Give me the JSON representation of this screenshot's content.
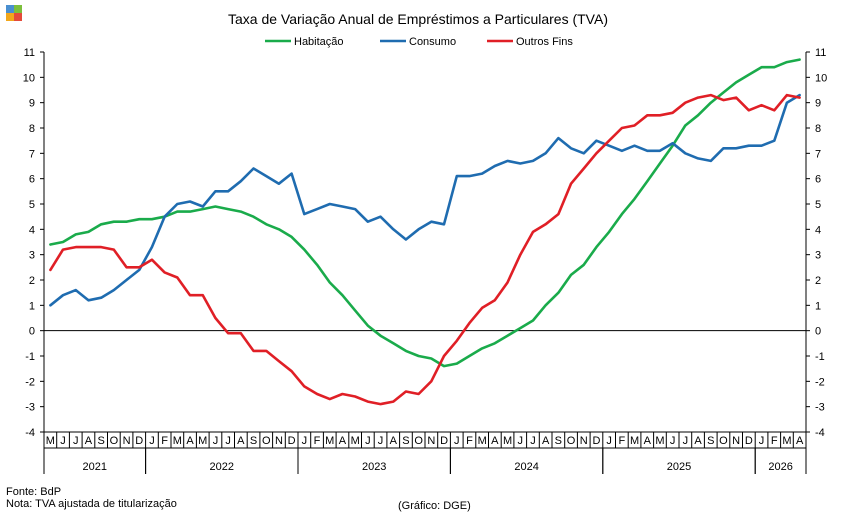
{
  "chart_data": {
    "type": "line",
    "title": "Taxa de Variação Anual de Empréstimos  a Particulares (TVA)",
    "ylim": [
      -4,
      11
    ],
    "yticks": [
      11,
      10,
      9,
      8,
      7,
      6,
      5,
      4,
      3,
      2,
      1,
      0,
      -1,
      -2,
      -3,
      -4
    ],
    "grid": false,
    "legend": "top-center",
    "months": [
      "M",
      "J",
      "J",
      "A",
      "S",
      "O",
      "N",
      "D",
      "J",
      "F",
      "M",
      "A",
      "M",
      "J",
      "J",
      "A",
      "S",
      "O",
      "N",
      "D",
      "J",
      "F",
      "M",
      "A",
      "M",
      "J",
      "J",
      "A",
      "S",
      "O",
      "N",
      "D",
      "J",
      "F",
      "M",
      "A",
      "M",
      "J",
      "J",
      "A",
      "S",
      "O",
      "N",
      "D",
      "J",
      "F",
      "M",
      "A",
      "M",
      "J",
      "J",
      "A",
      "S",
      "O",
      "N",
      "D",
      "J",
      "F",
      "M",
      "A"
    ],
    "years": [
      {
        "label": "2021",
        "start": 0,
        "count": 8
      },
      {
        "label": "2022",
        "start": 8,
        "count": 12
      },
      {
        "label": "2023",
        "start": 20,
        "count": 12
      },
      {
        "label": "2024",
        "start": 32,
        "count": 12
      },
      {
        "label": "2025",
        "start": 44,
        "count": 12
      },
      {
        "label": "2026",
        "start": 56,
        "count": 4
      }
    ],
    "series": [
      {
        "name": "Habitação",
        "color": "#1aab4b",
        "values": [
          3.4,
          3.5,
          3.8,
          3.9,
          4.2,
          4.3,
          4.3,
          4.4,
          4.4,
          4.5,
          4.7,
          4.7,
          4.8,
          4.9,
          4.8,
          4.7,
          4.5,
          4.2,
          4.0,
          3.7,
          3.2,
          2.6,
          1.9,
          1.4,
          0.8,
          0.2,
          -0.2,
          -0.5,
          -0.8,
          -1.0,
          -1.1,
          -1.4,
          -1.3,
          -1.0,
          -0.7,
          -0.5,
          -0.2,
          0.1,
          0.4,
          1.0,
          1.5,
          2.2,
          2.6,
          3.3,
          3.9,
          4.6,
          5.2,
          5.9,
          6.6,
          7.3,
          8.1,
          8.5,
          9.0,
          9.4,
          9.8,
          10.1,
          10.4,
          10.4,
          10.6,
          10.7
        ]
      },
      {
        "name": "Consumo",
        "color": "#1f6cb0",
        "values": [
          1.0,
          1.4,
          1.6,
          1.2,
          1.3,
          1.6,
          2.0,
          2.4,
          3.3,
          4.5,
          5.0,
          5.1,
          4.9,
          5.5,
          5.5,
          5.9,
          6.4,
          6.1,
          5.8,
          6.2,
          4.6,
          4.8,
          5.0,
          4.9,
          4.8,
          4.3,
          4.5,
          4.0,
          3.6,
          4.0,
          4.3,
          4.2,
          6.1,
          6.1,
          6.2,
          6.5,
          6.7,
          6.6,
          6.7,
          7.0,
          7.6,
          7.2,
          7.0,
          7.5,
          7.3,
          7.1,
          7.3,
          7.1,
          7.1,
          7.4,
          7.0,
          6.8,
          6.7,
          7.2,
          7.2,
          7.3,
          7.3,
          7.5,
          9.0,
          9.3
        ]
      },
      {
        "name": "Outros Fins",
        "color": "#e01f26",
        "values": [
          2.4,
          3.2,
          3.3,
          3.3,
          3.3,
          3.2,
          2.5,
          2.5,
          2.8,
          2.3,
          2.1,
          1.4,
          1.4,
          0.5,
          -0.1,
          -0.1,
          -0.8,
          -0.8,
          -1.2,
          -1.6,
          -2.2,
          -2.5,
          -2.7,
          -2.5,
          -2.6,
          -2.8,
          -2.9,
          -2.8,
          -2.4,
          -2.5,
          -2.0,
          -1.0,
          -0.4,
          0.3,
          0.9,
          1.2,
          1.9,
          3.0,
          3.9,
          4.2,
          4.6,
          5.8,
          6.4,
          7.0,
          7.5,
          8.0,
          8.1,
          8.5,
          8.5,
          8.6,
          9.0,
          9.2,
          9.3,
          9.1,
          9.2,
          8.7,
          8.9,
          8.7,
          9.3,
          9.2
        ]
      }
    ]
  },
  "footer": {
    "fonte": "Fonte: BdP",
    "nota": "Nota: TVA ajustada de titularização",
    "grafico": "(Gráfico: DGE)"
  },
  "logo_colors": [
    "#4a8fd0",
    "#7cbf3c",
    "#f2a71b",
    "#e44a3a"
  ]
}
